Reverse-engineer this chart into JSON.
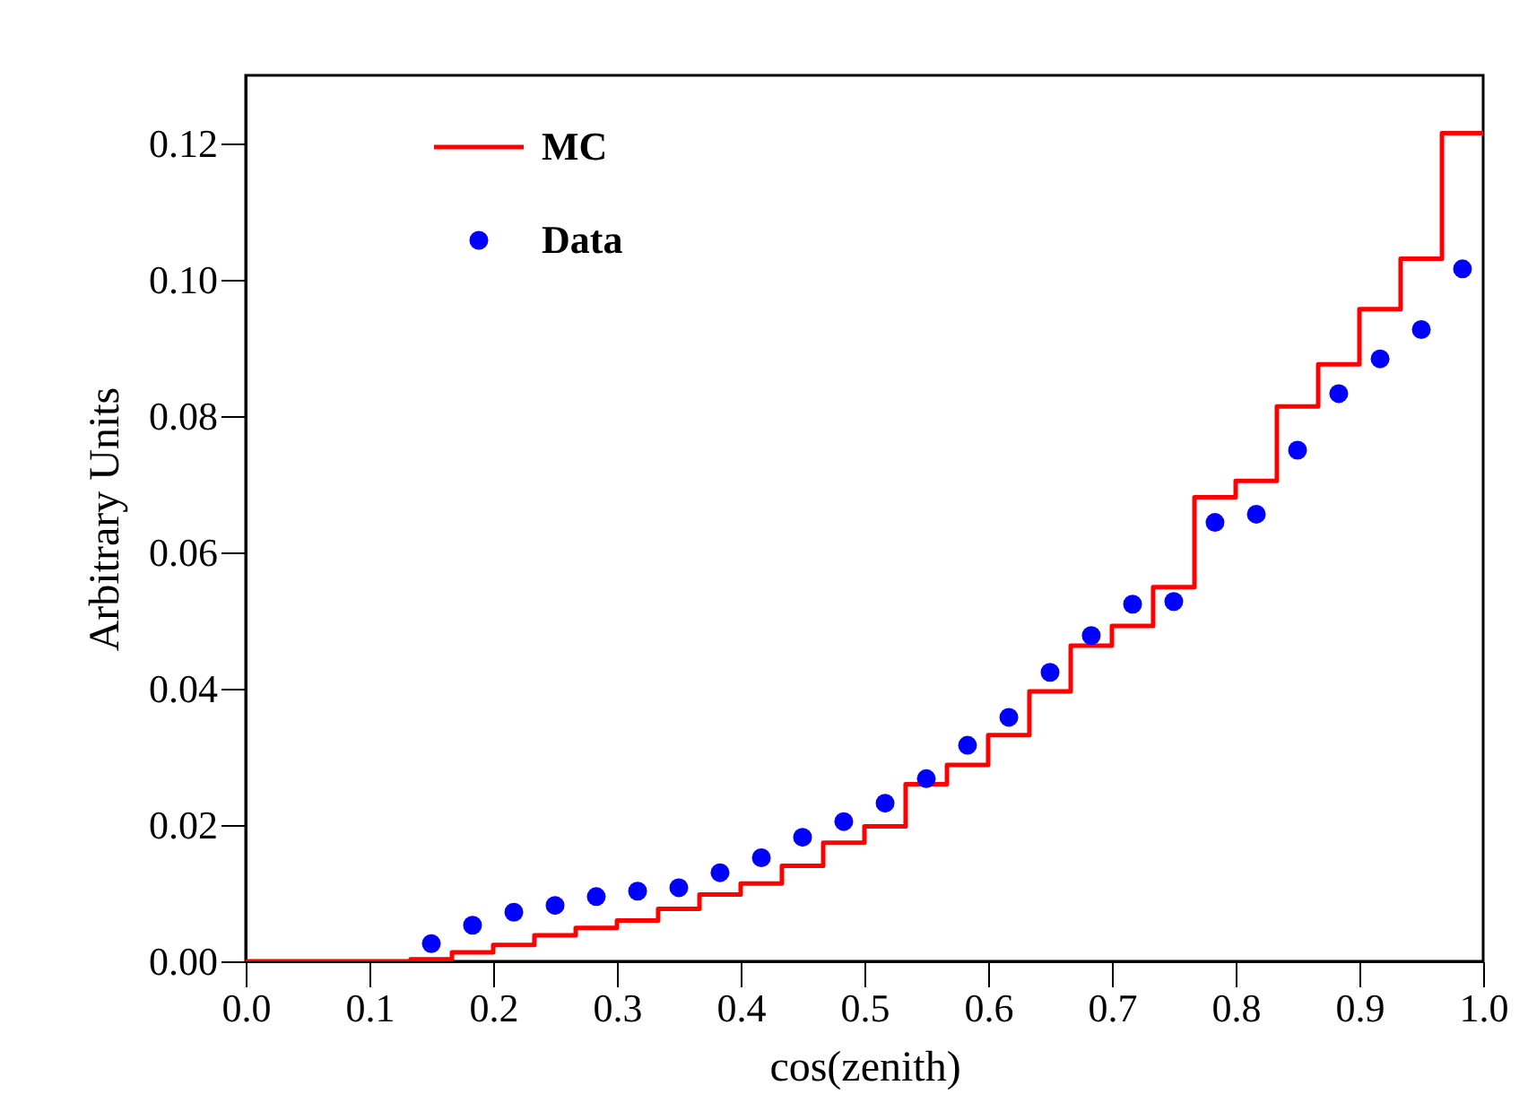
{
  "chart_data": {
    "type": "histogram",
    "xlabel": "cos(zenith)",
    "ylabel": "Arbitrary Units",
    "bins": [
      0.0,
      0.0333,
      0.0667,
      0.1,
      0.1333,
      0.1667,
      0.2,
      0.2333,
      0.2667,
      0.3,
      0.3333,
      0.3667,
      0.4,
      0.4333,
      0.4667,
      0.5,
      0.5333,
      0.5667,
      0.6,
      0.6333,
      0.6667,
      0.7,
      0.7333,
      0.7667,
      0.8,
      0.8333,
      0.8667,
      0.9,
      0.9333,
      0.9667,
      1.0
    ],
    "series": [
      {
        "name": "MC",
        "color": "#ff0000",
        "values": [
          0,
          0,
          0,
          0,
          0.0003,
          0.0013,
          0.0024,
          0.0038,
          0.0049,
          0.006,
          0.0077,
          0.0098,
          0.0114,
          0.014,
          0.0174,
          0.0198,
          0.026,
          0.0288,
          0.0332,
          0.0396,
          0.0463,
          0.0492,
          0.0549,
          0.0681,
          0.0705,
          0.0814,
          0.0876,
          0.0957,
          0.1031,
          0.1215
        ]
      },
      {
        "name": "Data",
        "type": "scatter",
        "color": "#0000ff",
        "marker": "circle",
        "x": [
          0.15,
          0.1833,
          0.2167,
          0.25,
          0.2833,
          0.3167,
          0.35,
          0.3833,
          0.4167,
          0.45,
          0.4833,
          0.5167,
          0.55,
          0.5833,
          0.6167,
          0.65,
          0.6833,
          0.7167,
          0.75,
          0.7833,
          0.8167,
          0.85,
          0.8833,
          0.9167,
          0.95,
          0.9833
        ],
        "values": [
          0.0026,
          0.0053,
          0.0072,
          0.0082,
          0.0095,
          0.0103,
          0.0108,
          0.013,
          0.0152,
          0.0182,
          0.0205,
          0.0232,
          0.0268,
          0.0317,
          0.0358,
          0.0424,
          0.0478,
          0.0524,
          0.0528,
          0.0644,
          0.0656,
          0.075,
          0.0833,
          0.0884,
          0.0927,
          0.1016
        ]
      }
    ],
    "xlim": [
      0,
      1
    ],
    "ylim": [
      0,
      0.13
    ],
    "xticks": [
      {
        "value": 0,
        "label": "0.0"
      },
      0.1,
      0.2,
      0.3,
      0.4,
      0.5,
      0.6,
      0.7,
      0.8,
      0.9,
      {
        "value": 1,
        "label": "1.0"
      }
    ],
    "yticks": [
      {
        "value": 0,
        "label": "0.00"
      },
      0.02,
      0.04,
      0.06,
      0.08,
      {
        "value": 0.1,
        "label": "0.10"
      },
      0.12
    ],
    "legend": "top left",
    "grid": false
  }
}
